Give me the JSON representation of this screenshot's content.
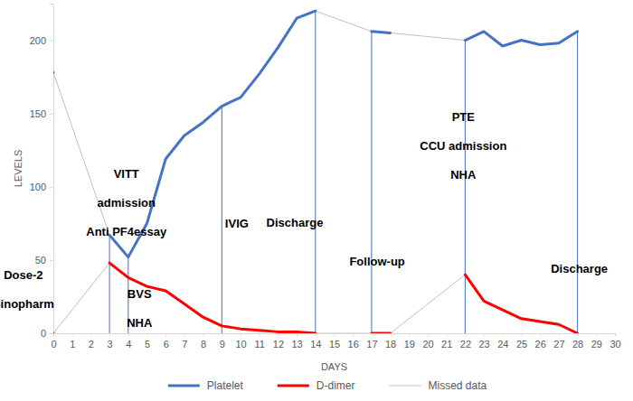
{
  "chart_data": {
    "type": "line",
    "x_label": "DAYS",
    "y_label": "LEVELS",
    "x": [
      0,
      1,
      2,
      3,
      4,
      5,
      6,
      7,
      8,
      9,
      10,
      11,
      12,
      13,
      14,
      15,
      16,
      17,
      18,
      19,
      20,
      21,
      22,
      23,
      24,
      25,
      26,
      27,
      28,
      29,
      30
    ],
    "series": [
      {
        "name": "Platelet",
        "color": "#4472c4",
        "values": [
          178,
          null,
          null,
          67,
          52,
          75,
          119,
          135,
          144,
          155,
          161,
          177,
          195,
          215,
          220,
          null,
          null,
          206,
          205,
          null,
          null,
          null,
          200,
          206,
          196,
          200,
          197,
          198,
          206,
          null,
          null
        ]
      },
      {
        "name": "D-dimer",
        "color": "#ff0000",
        "values": [
          0,
          null,
          null,
          48,
          38,
          32,
          29,
          20,
          11,
          5,
          3,
          2,
          1,
          1,
          0,
          null,
          null,
          0,
          0,
          null,
          null,
          null,
          40,
          22,
          16,
          10,
          8,
          6,
          0,
          null,
          null
        ]
      },
      {
        "name": "Missed data",
        "color": "#bfbfbf",
        "type": "connector"
      }
    ],
    "xlim": [
      0,
      30
    ],
    "xticks": [
      0,
      1,
      2,
      3,
      4,
      5,
      6,
      7,
      8,
      9,
      10,
      11,
      12,
      13,
      14,
      15,
      16,
      17,
      18,
      19,
      20,
      21,
      22,
      23,
      24,
      25,
      26,
      27,
      28,
      29,
      30
    ],
    "ylim": [
      0,
      225
    ],
    "yticks": [
      0,
      50,
      100,
      150,
      200
    ],
    "grid": false,
    "legend": "bottom",
    "events": [
      3,
      4,
      9,
      14,
      17,
      22,
      28
    ],
    "annotations": [
      {
        "x": -1.6,
        "y": 27,
        "text": [
          "Dose-2",
          "Sinopharm"
        ]
      },
      {
        "x": 3.9,
        "y": 86,
        "text": [
          "VITT",
          "admission",
          "Anti PF4essay"
        ]
      },
      {
        "x": 4.6,
        "y": 14,
        "text": [
          "BVS",
          "NHA"
        ]
      },
      {
        "x": 9.8,
        "y": 72,
        "text": [
          "IVIG"
        ]
      },
      {
        "x": 12.9,
        "y": 73,
        "text": [
          "Discharge"
        ]
      },
      {
        "x": 17.3,
        "y": 46,
        "text": [
          "Follow-up"
        ]
      },
      {
        "x": 21.9,
        "y": 125,
        "text": [
          "PTE",
          "CCU admission",
          "NHA"
        ]
      },
      {
        "x": 28.1,
        "y": 41,
        "text": [
          "Discharge"
        ]
      }
    ]
  }
}
